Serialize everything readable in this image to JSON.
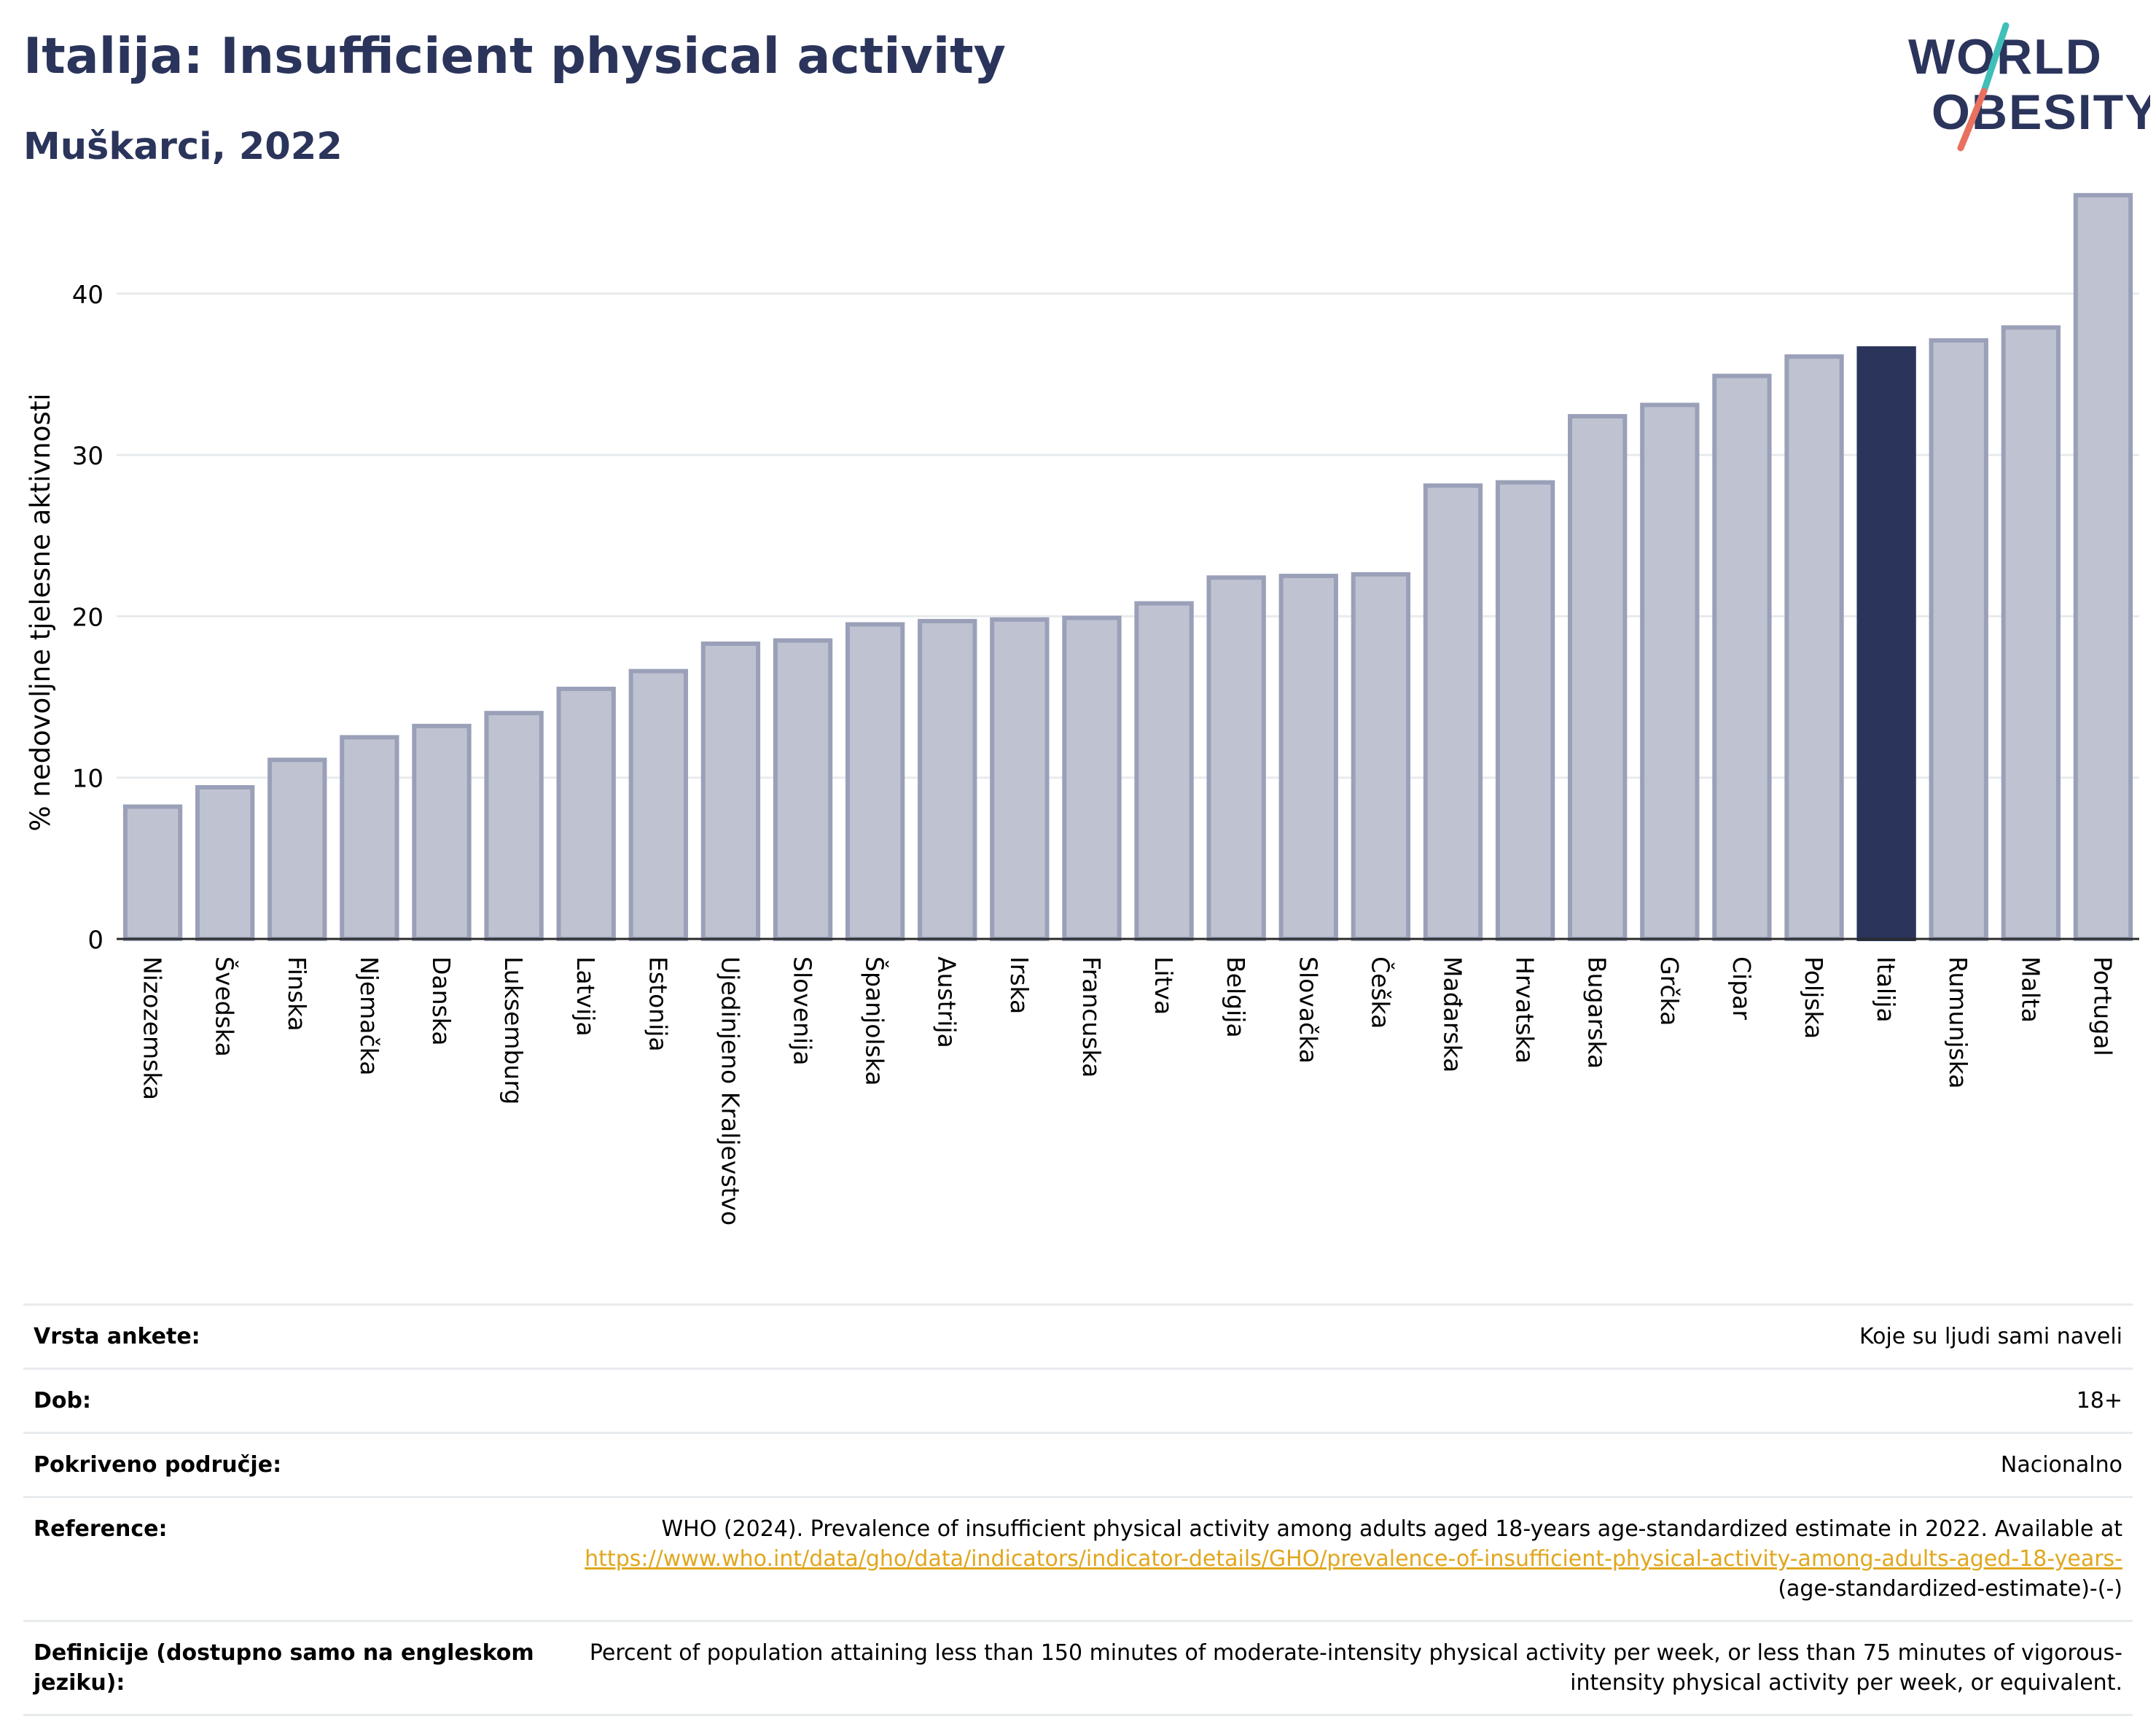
{
  "header": {
    "title": "Italija: Insufficient physical activity",
    "subtitle": "Muškarci, 2022"
  },
  "logo": {
    "line1": "WORLD",
    "line2": "OBESITY",
    "name": "world-obesity-logo"
  },
  "colors": {
    "title": "#2b345b",
    "bar_default_fill": "#bfc3d1",
    "bar_default_stroke": "#9aa0b8",
    "bar_highlight": "#2b345b",
    "gridline": "#e8ebee",
    "link": "#e0a71e",
    "logo_slash": [
      "#3fbfb8",
      "#e8705f"
    ]
  },
  "chart_data": {
    "type": "bar",
    "ylabel": "% nedovoljne tjelesne aktivnosti",
    "ylim": [
      0,
      46
    ],
    "yticks": [
      0,
      10,
      20,
      30,
      40
    ],
    "grid": true,
    "highlight": "Italija",
    "categories": [
      "Nizozemska",
      "Švedska",
      "Finska",
      "Njemačka",
      "Danska",
      "Luksemburg",
      "Latvija",
      "Estonija",
      "Ujedinjeno Kraljevstvo",
      "Slovenija",
      "Španjolska",
      "Austrija",
      "Irska",
      "Francuska",
      "Litva",
      "Belgija",
      "Slovačka",
      "Češka",
      "Mađarska",
      "Hrvatska",
      "Bugarska",
      "Grčka",
      "Cipar",
      "Poljska",
      "Italija",
      "Rumunjska",
      "Malta",
      "Portugal"
    ],
    "values": [
      8.2,
      9.4,
      11.1,
      12.5,
      13.2,
      14.0,
      15.5,
      16.6,
      18.3,
      18.5,
      19.5,
      19.7,
      19.8,
      19.9,
      20.8,
      22.4,
      22.5,
      22.6,
      28.1,
      28.3,
      32.4,
      33.1,
      34.9,
      36.1,
      36.6,
      37.1,
      37.9,
      46.1
    ]
  },
  "meta": {
    "rows": [
      {
        "label": "Vrsta ankete:",
        "value": "Koje su ljudi sami naveli"
      },
      {
        "label": "Dob:",
        "value": "18+"
      },
      {
        "label": "Pokriveno područje:",
        "value": "Nacionalno"
      }
    ],
    "reference": {
      "label": "Reference:",
      "text": "WHO (2024). Prevalence of insufficient physical activity among adults aged 18-years age-standardized estimate in 2022. Available at",
      "link": "https://www.who.int/data/gho/data/indicators/indicator-details/GHO/prevalence-of-insufficient-physical-activity-among-adults-aged-18-years-",
      "suffix": "(age-standardized-estimate)-(-)"
    },
    "definition": {
      "label": "Definicije (dostupno samo na engleskom jeziku):",
      "value": "Percent of population attaining less than 150 minutes of moderate-intensity physical activity per week, or less than 75 minutes of vigorous-intensity physical activity per week, or equivalent."
    }
  }
}
